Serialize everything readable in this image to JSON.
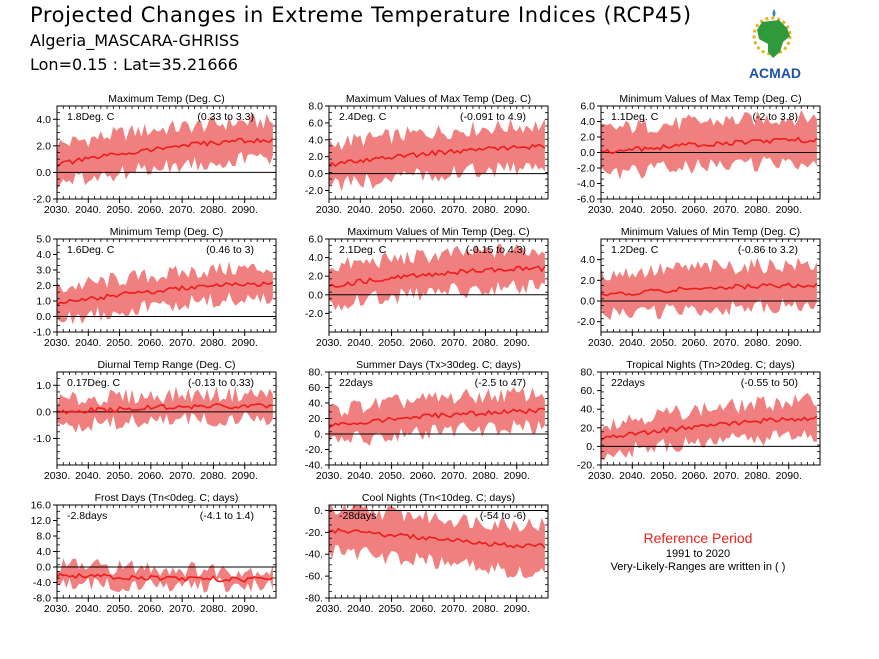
{
  "header": {
    "title": "Projected Changes in Extreme Temperature Indices (RCP45)",
    "location": "Algeria_MASCARA-GHRISS",
    "coords": "Lon=0.15 : Lat=35.21666"
  },
  "logo": {
    "text": "ACMAD",
    "icon": "acmad-africa-logo"
  },
  "colors": {
    "band": "#f08080",
    "line": "#ee1c1c",
    "axis": "#000000",
    "accent": "#e8231e"
  },
  "reference": {
    "title": "Reference Period",
    "years": "1991 to 2020",
    "note": "Very-Likely-Ranges are written in ( )"
  },
  "chart_data": [
    {
      "type": "area",
      "title": "Maximum Temp (Deg. C)",
      "stat": "1.8Deg. C",
      "range": "(0.33 to 3.3)",
      "xlim": [
        2030,
        2100
      ],
      "ylim": [
        -2.0,
        5.0
      ],
      "yticks": [
        "-2.0",
        "0.0",
        "2.0",
        "4.0"
      ],
      "xticks": [
        "2030.",
        "2040.",
        "2050.",
        "2060.",
        "2070.",
        "2080.",
        "2090."
      ],
      "trend": [
        0.6,
        1.0,
        1.4,
        1.7,
        2.0,
        2.2,
        2.4,
        2.4
      ],
      "band_lower": [
        -0.9,
        -0.5,
        -0.1,
        0.3,
        0.6,
        0.8,
        1.0,
        1.1
      ],
      "band_upper": [
        2.1,
        2.5,
        2.9,
        3.2,
        3.4,
        3.6,
        3.8,
        3.8
      ]
    },
    {
      "type": "area",
      "title": "Maximum Values of Max Temp (Deg. C)",
      "stat": "2.4Deg. C",
      "range": "(-0.091 to 4.9)",
      "xlim": [
        2030,
        2100
      ],
      "ylim": [
        -3.0,
        8.0
      ],
      "yticks": [
        "-2.0",
        "0.0",
        "2.0",
        "4.0",
        "6.0",
        "8.0"
      ],
      "xticks": [
        "2030.",
        "2040.",
        "2050.",
        "2060.",
        "2070.",
        "2080.",
        "2090."
      ],
      "trend": [
        1.0,
        1.5,
        1.9,
        2.3,
        2.6,
        2.9,
        3.1,
        3.2
      ],
      "band_lower": [
        -1.5,
        -1.0,
        -0.6,
        -0.2,
        0.1,
        0.4,
        0.6,
        0.7
      ],
      "band_upper": [
        3.5,
        4.0,
        4.4,
        4.8,
        5.1,
        5.4,
        5.6,
        5.7
      ]
    },
    {
      "type": "area",
      "title": "Minimum Values of Max Temp (Deg. C)",
      "stat": "1.1Deg. C",
      "range": "(-2 to 3.8)",
      "xlim": [
        2030,
        2100
      ],
      "ylim": [
        -6.0,
        6.0
      ],
      "yticks": [
        "-6.0",
        "-4.0",
        "-2.0",
        "0.0",
        "2.0",
        "4.0",
        "6.0"
      ],
      "xticks": [
        "2030.",
        "2040.",
        "2050.",
        "2060.",
        "2070.",
        "2080.",
        "2090."
      ],
      "trend": [
        0.1,
        0.4,
        0.7,
        1.0,
        1.2,
        1.4,
        1.6,
        1.6
      ],
      "band_lower": [
        -2.8,
        -2.5,
        -2.2,
        -1.9,
        -1.7,
        -1.5,
        -1.3,
        -1.3
      ],
      "band_upper": [
        3.0,
        3.3,
        3.6,
        3.9,
        4.1,
        4.3,
        4.5,
        4.5
      ]
    },
    {
      "type": "area",
      "title": "Minimum Temp (Deg. C)",
      "stat": "1.6Deg. C",
      "range": "(0.46 to 3)",
      "xlim": [
        2030,
        2100
      ],
      "ylim": [
        -1.0,
        5.0
      ],
      "yticks": [
        "-1.0",
        "0.0",
        "1.0",
        "2.0",
        "3.0",
        "4.0",
        "5.0"
      ],
      "xticks": [
        "2030.",
        "2040.",
        "2050.",
        "2060.",
        "2070.",
        "2080.",
        "2090."
      ],
      "trend": [
        0.8,
        1.1,
        1.4,
        1.6,
        1.8,
        2.0,
        2.1,
        2.1
      ],
      "band_lower": [
        -0.2,
        0.1,
        0.4,
        0.6,
        0.8,
        1.0,
        1.1,
        1.1
      ],
      "band_upper": [
        1.8,
        2.1,
        2.4,
        2.6,
        2.8,
        3.0,
        3.1,
        3.1
      ]
    },
    {
      "type": "area",
      "title": "Maximum Values of Min Temp (Deg. C)",
      "stat": "2.1Deg. C",
      "range": "(-0.15 to 4.3)",
      "xlim": [
        2030,
        2100
      ],
      "ylim": [
        -4.0,
        6.0
      ],
      "yticks": [
        "-2.0",
        "0.0",
        "2.0",
        "4.0",
        "6.0"
      ],
      "xticks": [
        "2030.",
        "2040.",
        "2050.",
        "2060.",
        "2070.",
        "2080.",
        "2090."
      ],
      "trend": [
        1.0,
        1.4,
        1.8,
        2.1,
        2.4,
        2.6,
        2.8,
        2.8
      ],
      "band_lower": [
        -1.0,
        -0.6,
        -0.2,
        0.1,
        0.4,
        0.6,
        0.8,
        0.8
      ],
      "band_upper": [
        3.0,
        3.4,
        3.8,
        4.1,
        4.4,
        4.6,
        4.8,
        4.8
      ]
    },
    {
      "type": "area",
      "title": "Minimum Values of Min Temp (Deg. C)",
      "stat": "1.2Deg. C",
      "range": "(-0.86 to 3.2)",
      "xlim": [
        2030,
        2100
      ],
      "ylim": [
        -3.0,
        6.0
      ],
      "yticks": [
        "-2.0",
        "0.0",
        "2.0",
        "4.0"
      ],
      "xticks": [
        "2030.",
        "2040.",
        "2050.",
        "2060.",
        "2070.",
        "2080.",
        "2090."
      ],
      "trend": [
        0.6,
        0.8,
        1.0,
        1.2,
        1.3,
        1.4,
        1.5,
        1.5
      ],
      "band_lower": [
        -1.4,
        -1.2,
        -1.0,
        -0.8,
        -0.7,
        -0.6,
        -0.5,
        -0.5
      ],
      "band_upper": [
        2.6,
        2.8,
        3.0,
        3.2,
        3.3,
        3.4,
        3.5,
        3.5
      ]
    },
    {
      "type": "area",
      "title": "Diurnal Temp Range (Deg. C)",
      "stat": "0.17Deg. C",
      "range": "(-0.13 to 0.33)",
      "xlim": [
        2030,
        2100
      ],
      "ylim": [
        -2.0,
        1.5
      ],
      "yticks": [
        "-1.0",
        "0.0",
        "1.0"
      ],
      "xticks": [
        "2030.",
        "2040.",
        "2050.",
        "2060.",
        "2070.",
        "2080.",
        "2090."
      ],
      "trend": [
        -0.05,
        0.05,
        0.1,
        0.15,
        0.2,
        0.2,
        0.22,
        0.22
      ],
      "band_lower": [
        -0.6,
        -0.5,
        -0.4,
        -0.35,
        -0.3,
        -0.3,
        -0.28,
        -0.28
      ],
      "band_upper": [
        0.4,
        0.5,
        0.55,
        0.6,
        0.65,
        0.65,
        0.67,
        0.67
      ]
    },
    {
      "type": "area",
      "title": "Summer Days (Tx>30deg. C; days)",
      "stat": "22days",
      "range": "(-2.5 to 47)",
      "xlim": [
        2030,
        2100
      ],
      "ylim": [
        -40.0,
        80.0
      ],
      "yticks": [
        "-40.",
        "-20.",
        "0.",
        "20.",
        "40.",
        "60.",
        "80."
      ],
      "xticks": [
        "2030.",
        "2040.",
        "2050.",
        "2060.",
        "2070.",
        "2080.",
        "2090."
      ],
      "trend": [
        10,
        15,
        19,
        22,
        25,
        27,
        29,
        30
      ],
      "band_lower": [
        -10,
        -6,
        -2,
        1,
        4,
        6,
        8,
        9
      ],
      "band_upper": [
        30,
        36,
        40,
        44,
        47,
        49,
        51,
        52
      ]
    },
    {
      "type": "area",
      "title": "Tropical Nights (Tn>20deg. C; days)",
      "stat": "22days",
      "range": "(-0.55 to 50)",
      "xlim": [
        2030,
        2100
      ],
      "ylim": [
        -20.0,
        80.0
      ],
      "yticks": [
        "-20.",
        "0.",
        "20.",
        "40.",
        "60.",
        "80."
      ],
      "xticks": [
        "2030.",
        "2040.",
        "2050.",
        "2060.",
        "2070.",
        "2080.",
        "2090."
      ],
      "trend": [
        8,
        13,
        17,
        21,
        24,
        27,
        29,
        30
      ],
      "band_lower": [
        -8,
        -4,
        0,
        3,
        6,
        8,
        10,
        11
      ],
      "band_upper": [
        24,
        30,
        35,
        39,
        42,
        45,
        48,
        49
      ]
    },
    {
      "type": "area",
      "title": "Frost Days (Tn<0deg. C; days)",
      "stat": "-2.8days",
      "range": "(-4.1 to 1.4)",
      "xlim": [
        2030,
        2100
      ],
      "ylim": [
        -8.0,
        16.0
      ],
      "yticks": [
        "-8.0",
        "-4.0",
        "0.0",
        "4.0",
        "8.0",
        "12.0",
        "16.0"
      ],
      "xticks": [
        "2030.",
        "2040.",
        "2050.",
        "2060.",
        "2070.",
        "2080.",
        "2090."
      ],
      "trend": [
        -2.0,
        -2.4,
        -2.6,
        -2.8,
        -3.0,
        -3.1,
        -3.2,
        -3.2
      ],
      "band_lower": [
        -4.5,
        -4.6,
        -4.7,
        -4.7,
        -4.8,
        -4.8,
        -4.8,
        -4.8
      ],
      "band_upper": [
        0.5,
        0.2,
        0.0,
        -0.2,
        -0.5,
        -0.7,
        -0.9,
        -1.0
      ]
    },
    {
      "type": "area",
      "title": "Cool Nights (Tn<10deg. C; days)",
      "stat": "-28days",
      "range": "(-54 to -6)",
      "xlim": [
        2030,
        2100
      ],
      "ylim": [
        -80.0,
        5.0
      ],
      "yticks": [
        "-80.",
        "-60.",
        "-40.",
        "-20.",
        "0."
      ],
      "xticks": [
        "2030.",
        "2040.",
        "2050.",
        "2060.",
        "2070.",
        "2080.",
        "2090."
      ],
      "trend": [
        -18,
        -20,
        -22,
        -25,
        -27,
        -30,
        -32,
        -33
      ],
      "band_lower": [
        -38,
        -40,
        -43,
        -46,
        -49,
        -52,
        -55,
        -57
      ],
      "band_upper": [
        2,
        0,
        -2,
        -5,
        -8,
        -10,
        -12,
        -13
      ]
    }
  ]
}
